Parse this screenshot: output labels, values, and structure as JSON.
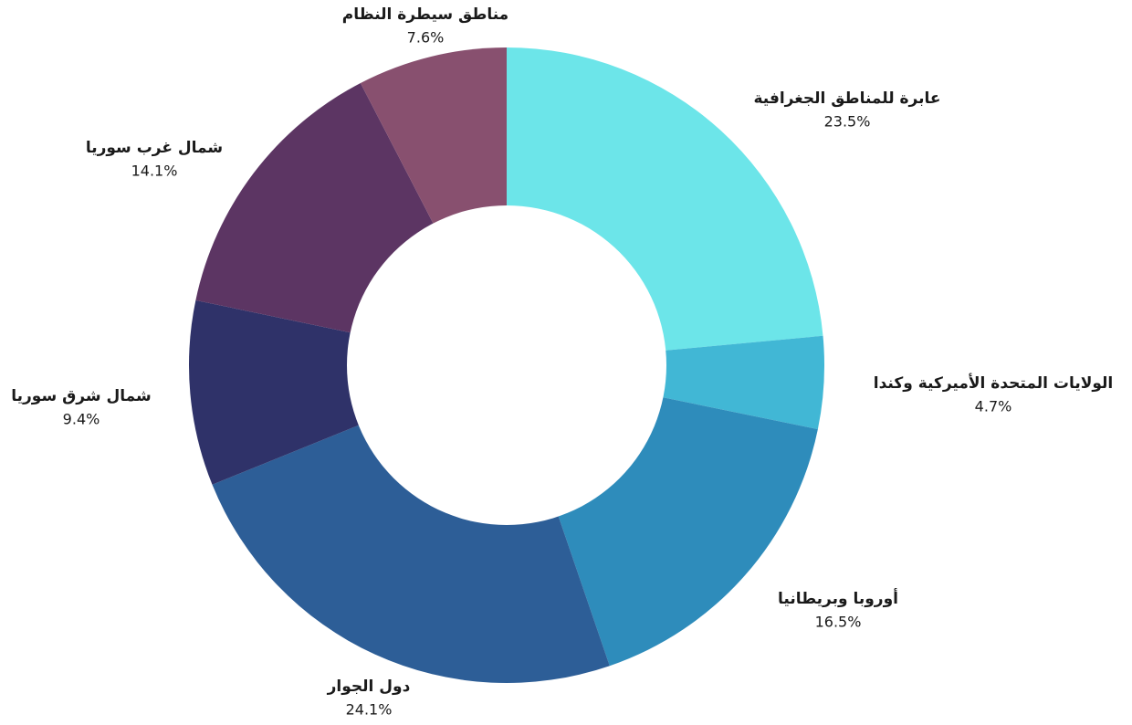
{
  "chart_data": {
    "type": "pie",
    "title": "",
    "donut": true,
    "legend": "none",
    "slices": [
      {
        "label": "عابرة للمناطق الجغرافية",
        "value": 23.5,
        "value_label": "23.5%",
        "color": "#6ce5e9"
      },
      {
        "label": "الولايات المتحدة الأميركية وكندا",
        "value": 4.7,
        "value_label": "4.7%",
        "color": "#41b7d5"
      },
      {
        "label": "أوروبا  وبريطانيا",
        "value": 16.5,
        "value_label": "16.5%",
        "color": "#2e8cbb"
      },
      {
        "label": "دول الجوار",
        "value": 24.1,
        "value_label": "24.1%",
        "color": "#2d5e97"
      },
      {
        "label": "شمال شرق سوريا",
        "value": 9.4,
        "value_label": "9.4%",
        "color": "#2f3269"
      },
      {
        "label": "شمال غرب سوريا",
        "value": 14.1,
        "value_label": "14.1%",
        "color": "#5c3563"
      },
      {
        "label": "مناطق سيطرة النظام",
        "value": 7.6,
        "value_label": "7.6%",
        "color": "#88506f"
      }
    ]
  }
}
